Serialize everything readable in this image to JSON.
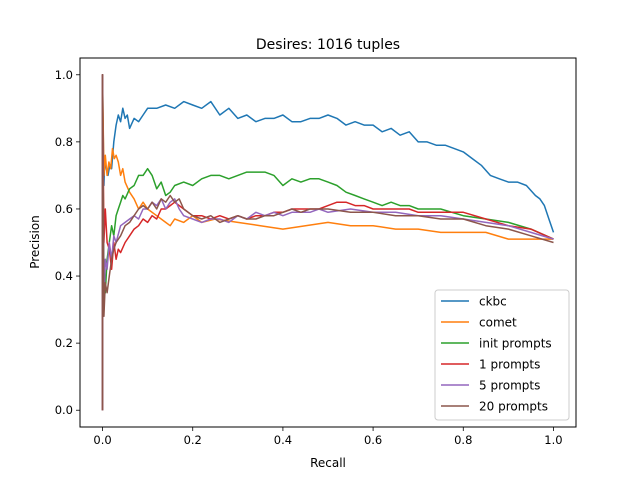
{
  "chart_data": {
    "type": "line",
    "title": "Desires: 1016 tuples",
    "xlabel": "Recall",
    "ylabel": "Precision",
    "xlim": [
      -0.05,
      1.05
    ],
    "ylim": [
      -0.05,
      1.05
    ],
    "xticks": [
      0.0,
      0.2,
      0.4,
      0.6,
      0.8,
      1.0
    ],
    "xtick_labels": [
      "0.0",
      "0.2",
      "0.4",
      "0.6",
      "0.8",
      "1.0"
    ],
    "yticks": [
      0.0,
      0.2,
      0.4,
      0.6,
      0.8,
      1.0
    ],
    "ytick_labels": [
      "0.0",
      "0.2",
      "0.4",
      "0.6",
      "0.8",
      "1.0"
    ],
    "grid": false,
    "legend_position": "lower-right",
    "series": [
      {
        "name": "ckbc",
        "color": "#1f77b4",
        "x": [
          0.0,
          0.0,
          0.003,
          0.005,
          0.008,
          0.012,
          0.016,
          0.02,
          0.025,
          0.03,
          0.035,
          0.04,
          0.045,
          0.05,
          0.055,
          0.06,
          0.07,
          0.08,
          0.09,
          0.1,
          0.12,
          0.14,
          0.16,
          0.18,
          0.2,
          0.22,
          0.24,
          0.26,
          0.28,
          0.3,
          0.32,
          0.34,
          0.36,
          0.38,
          0.4,
          0.42,
          0.44,
          0.46,
          0.48,
          0.5,
          0.52,
          0.54,
          0.56,
          0.58,
          0.6,
          0.62,
          0.64,
          0.66,
          0.68,
          0.7,
          0.72,
          0.74,
          0.76,
          0.78,
          0.8,
          0.82,
          0.84,
          0.86,
          0.88,
          0.9,
          0.92,
          0.94,
          0.96,
          0.97,
          0.98,
          0.99,
          1.0
        ],
        "y": [
          0.0,
          1.0,
          0.67,
          0.75,
          0.72,
          0.7,
          0.73,
          0.72,
          0.8,
          0.85,
          0.88,
          0.86,
          0.9,
          0.87,
          0.88,
          0.84,
          0.87,
          0.86,
          0.88,
          0.9,
          0.9,
          0.91,
          0.9,
          0.92,
          0.91,
          0.9,
          0.92,
          0.88,
          0.9,
          0.87,
          0.88,
          0.86,
          0.87,
          0.87,
          0.88,
          0.86,
          0.86,
          0.87,
          0.87,
          0.88,
          0.87,
          0.85,
          0.86,
          0.85,
          0.85,
          0.83,
          0.84,
          0.82,
          0.83,
          0.8,
          0.8,
          0.79,
          0.79,
          0.78,
          0.77,
          0.75,
          0.73,
          0.7,
          0.69,
          0.68,
          0.68,
          0.67,
          0.64,
          0.63,
          0.61,
          0.57,
          0.53
        ]
      },
      {
        "name": "comet",
        "color": "#ff7f0e",
        "x": [
          0.0,
          0.0,
          0.003,
          0.006,
          0.01,
          0.014,
          0.018,
          0.022,
          0.026,
          0.03,
          0.035,
          0.04,
          0.045,
          0.05,
          0.06,
          0.07,
          0.08,
          0.09,
          0.1,
          0.12,
          0.14,
          0.15,
          0.16,
          0.18,
          0.2,
          0.22,
          0.25,
          0.3,
          0.35,
          0.4,
          0.45,
          0.5,
          0.55,
          0.6,
          0.65,
          0.7,
          0.75,
          0.8,
          0.85,
          0.9,
          0.95,
          1.0
        ],
        "y": [
          0.0,
          1.0,
          0.7,
          0.76,
          0.7,
          0.74,
          0.72,
          0.78,
          0.75,
          0.76,
          0.74,
          0.7,
          0.72,
          0.68,
          0.65,
          0.63,
          0.6,
          0.62,
          0.6,
          0.58,
          0.56,
          0.55,
          0.57,
          0.56,
          0.58,
          0.56,
          0.57,
          0.56,
          0.55,
          0.54,
          0.55,
          0.56,
          0.55,
          0.55,
          0.54,
          0.54,
          0.53,
          0.53,
          0.53,
          0.51,
          0.51,
          0.51
        ]
      },
      {
        "name": "init prompts",
        "color": "#2ca02c",
        "x": [
          0.0,
          0.0,
          0.003,
          0.006,
          0.01,
          0.015,
          0.02,
          0.025,
          0.03,
          0.035,
          0.04,
          0.045,
          0.05,
          0.06,
          0.07,
          0.08,
          0.09,
          0.1,
          0.11,
          0.12,
          0.13,
          0.14,
          0.15,
          0.16,
          0.18,
          0.2,
          0.22,
          0.24,
          0.26,
          0.28,
          0.3,
          0.32,
          0.34,
          0.36,
          0.38,
          0.4,
          0.42,
          0.44,
          0.46,
          0.48,
          0.5,
          0.52,
          0.54,
          0.56,
          0.58,
          0.6,
          0.62,
          0.64,
          0.66,
          0.68,
          0.7,
          0.75,
          0.8,
          0.85,
          0.9,
          0.95,
          1.0
        ],
        "y": [
          0.0,
          1.0,
          0.4,
          0.35,
          0.45,
          0.5,
          0.55,
          0.52,
          0.58,
          0.6,
          0.62,
          0.64,
          0.63,
          0.66,
          0.67,
          0.7,
          0.7,
          0.72,
          0.7,
          0.66,
          0.68,
          0.64,
          0.65,
          0.67,
          0.68,
          0.67,
          0.69,
          0.7,
          0.7,
          0.69,
          0.7,
          0.71,
          0.71,
          0.71,
          0.7,
          0.67,
          0.69,
          0.68,
          0.69,
          0.69,
          0.68,
          0.67,
          0.65,
          0.64,
          0.63,
          0.62,
          0.61,
          0.62,
          0.61,
          0.61,
          0.6,
          0.6,
          0.58,
          0.57,
          0.56,
          0.54,
          0.51
        ]
      },
      {
        "name": "1 prompts",
        "color": "#d62728",
        "x": [
          0.0,
          0.0,
          0.003,
          0.006,
          0.01,
          0.015,
          0.02,
          0.025,
          0.03,
          0.035,
          0.04,
          0.05,
          0.06,
          0.07,
          0.08,
          0.09,
          0.1,
          0.11,
          0.12,
          0.13,
          0.14,
          0.15,
          0.16,
          0.18,
          0.2,
          0.22,
          0.24,
          0.26,
          0.28,
          0.3,
          0.32,
          0.34,
          0.36,
          0.38,
          0.4,
          0.42,
          0.44,
          0.46,
          0.48,
          0.5,
          0.52,
          0.54,
          0.56,
          0.58,
          0.6,
          0.62,
          0.64,
          0.66,
          0.68,
          0.7,
          0.75,
          0.8,
          0.85,
          0.9,
          0.95,
          1.0
        ],
        "y": [
          0.0,
          1.0,
          0.5,
          0.6,
          0.5,
          0.48,
          0.42,
          0.5,
          0.45,
          0.48,
          0.47,
          0.5,
          0.52,
          0.54,
          0.55,
          0.57,
          0.56,
          0.58,
          0.57,
          0.6,
          0.6,
          0.61,
          0.62,
          0.6,
          0.58,
          0.58,
          0.57,
          0.58,
          0.57,
          0.58,
          0.57,
          0.58,
          0.58,
          0.59,
          0.59,
          0.6,
          0.6,
          0.6,
          0.6,
          0.61,
          0.62,
          0.62,
          0.61,
          0.61,
          0.6,
          0.6,
          0.6,
          0.6,
          0.6,
          0.59,
          0.59,
          0.59,
          0.57,
          0.55,
          0.54,
          0.51
        ]
      },
      {
        "name": "5 prompts",
        "color": "#9467bd",
        "x": [
          0.0,
          0.0,
          0.003,
          0.006,
          0.01,
          0.015,
          0.02,
          0.025,
          0.03,
          0.04,
          0.05,
          0.06,
          0.07,
          0.08,
          0.09,
          0.1,
          0.11,
          0.12,
          0.13,
          0.14,
          0.15,
          0.16,
          0.17,
          0.18,
          0.2,
          0.22,
          0.24,
          0.26,
          0.28,
          0.3,
          0.32,
          0.34,
          0.36,
          0.38,
          0.4,
          0.42,
          0.44,
          0.46,
          0.48,
          0.5,
          0.55,
          0.6,
          0.65,
          0.7,
          0.75,
          0.8,
          0.85,
          0.9,
          0.95,
          1.0
        ],
        "y": [
          0.0,
          1.0,
          0.3,
          0.45,
          0.42,
          0.5,
          0.45,
          0.52,
          0.5,
          0.55,
          0.56,
          0.57,
          0.58,
          0.57,
          0.6,
          0.6,
          0.62,
          0.61,
          0.63,
          0.6,
          0.62,
          0.63,
          0.6,
          0.58,
          0.57,
          0.56,
          0.57,
          0.57,
          0.56,
          0.58,
          0.57,
          0.59,
          0.58,
          0.59,
          0.58,
          0.59,
          0.59,
          0.59,
          0.6,
          0.59,
          0.6,
          0.59,
          0.59,
          0.58,
          0.58,
          0.57,
          0.56,
          0.55,
          0.53,
          0.51
        ]
      },
      {
        "name": "20 prompts",
        "color": "#8c564b",
        "x": [
          0.0,
          0.0,
          0.003,
          0.006,
          0.01,
          0.015,
          0.02,
          0.025,
          0.03,
          0.04,
          0.05,
          0.06,
          0.07,
          0.08,
          0.09,
          0.1,
          0.11,
          0.12,
          0.13,
          0.14,
          0.15,
          0.16,
          0.17,
          0.18,
          0.2,
          0.22,
          0.24,
          0.26,
          0.28,
          0.3,
          0.32,
          0.34,
          0.36,
          0.38,
          0.4,
          0.42,
          0.44,
          0.46,
          0.48,
          0.5,
          0.55,
          0.6,
          0.65,
          0.7,
          0.75,
          0.8,
          0.85,
          0.9,
          0.95,
          1.0
        ],
        "y": [
          0.0,
          1.0,
          0.28,
          0.38,
          0.35,
          0.4,
          0.45,
          0.48,
          0.5,
          0.52,
          0.55,
          0.56,
          0.58,
          0.6,
          0.61,
          0.6,
          0.62,
          0.6,
          0.63,
          0.62,
          0.64,
          0.62,
          0.63,
          0.6,
          0.58,
          0.57,
          0.58,
          0.56,
          0.57,
          0.58,
          0.57,
          0.57,
          0.58,
          0.58,
          0.59,
          0.6,
          0.59,
          0.6,
          0.6,
          0.6,
          0.59,
          0.59,
          0.58,
          0.58,
          0.57,
          0.57,
          0.55,
          0.54,
          0.52,
          0.5
        ]
      }
    ]
  }
}
